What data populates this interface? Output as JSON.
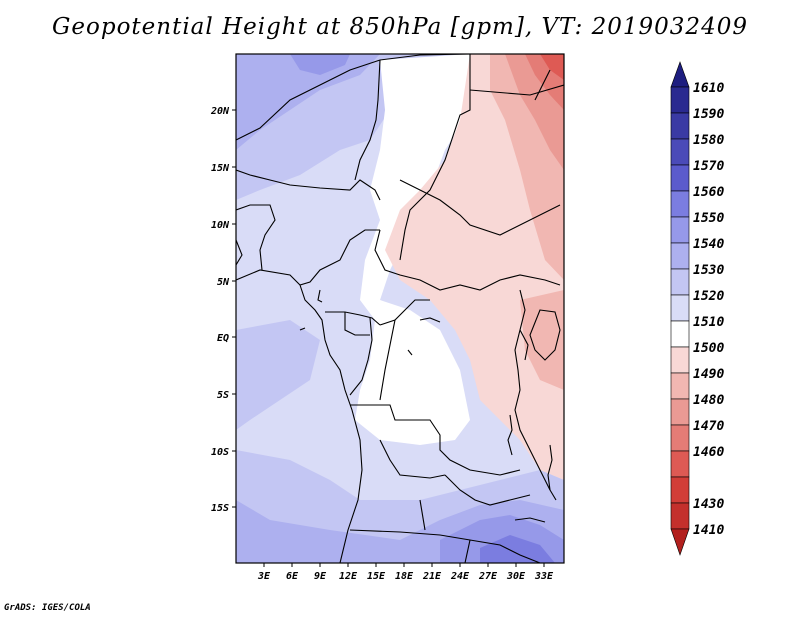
{
  "title": "Geopotential Height at 850hPa [gpm], VT: 2019032409",
  "footer": "GrADS: IGES/COLA",
  "colors": {
    "c1410": "#b2201e",
    "c1430": "#c4302c",
    "c1440": "#d23e38",
    "c1460": "#de5a54",
    "c1470": "#e47c76",
    "c1480": "#ea9a94",
    "c1490": "#f1b7b2",
    "c1500": "#f8d8d6",
    "c1510": "#ffffff",
    "c1520": "#d9dcf7",
    "c1530": "#c3c6f3",
    "c1540": "#adb0ef",
    "c1550": "#9699e9",
    "c1560": "#7b7de0",
    "c1570": "#5b5bcc",
    "c1580": "#4b4bb8",
    "c1590": "#3a3aa4",
    "c1600": "#2a2a90",
    "c1610": "#1e1e80"
  },
  "map": {
    "lat_labels": [
      "20N",
      "15N",
      "10N",
      "5N",
      "EQ",
      "5S",
      "10S",
      "15S"
    ],
    "lon_labels": [
      "3E",
      "6E",
      "9E",
      "12E",
      "15E",
      "18E",
      "21E",
      "24E",
      "27E",
      "30E",
      "33E"
    ]
  },
  "colorbar": {
    "labels": [
      "1610",
      "1590",
      "1580",
      "1570",
      "1560",
      "1550",
      "1540",
      "1530",
      "1520",
      "1510",
      "1500",
      "1490",
      "1480",
      "1470",
      "1460",
      "1430",
      "1410"
    ]
  }
}
